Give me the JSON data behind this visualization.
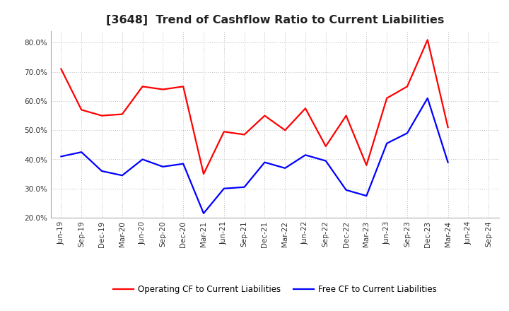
{
  "title": "[3648]  Trend of Cashflow Ratio to Current Liabilities",
  "x_labels": [
    "Jun-19",
    "Sep-19",
    "Dec-19",
    "Mar-20",
    "Jun-20",
    "Sep-20",
    "Dec-20",
    "Mar-21",
    "Jun-21",
    "Sep-21",
    "Dec-21",
    "Mar-22",
    "Jun-22",
    "Sep-22",
    "Dec-22",
    "Mar-23",
    "Jun-23",
    "Sep-23",
    "Dec-23",
    "Mar-24",
    "Jun-24",
    "Sep-24"
  ],
  "operating_cf": [
    71.0,
    57.0,
    55.0,
    55.5,
    65.0,
    64.0,
    65.0,
    35.0,
    49.5,
    48.5,
    55.0,
    50.0,
    57.5,
    44.5,
    55.0,
    38.0,
    61.0,
    65.0,
    81.0,
    51.0,
    null,
    null
  ],
  "free_cf": [
    41.0,
    42.5,
    36.0,
    34.5,
    40.0,
    37.5,
    38.5,
    21.5,
    30.0,
    30.5,
    39.0,
    37.0,
    41.5,
    39.5,
    29.5,
    27.5,
    45.5,
    49.0,
    61.0,
    39.0,
    null,
    null
  ],
  "ylim": [
    20.0,
    84.0
  ],
  "yticks": [
    20.0,
    30.0,
    40.0,
    50.0,
    60.0,
    70.0,
    80.0
  ],
  "operating_color": "#ff0000",
  "free_color": "#0000ff",
  "legend_operating": "Operating CF to Current Liabilities",
  "legend_free": "Free CF to Current Liabilities",
  "bg_color": "#ffffff",
  "grid_color": "#bbbbbb",
  "title_fontsize": 11.5,
  "axis_fontsize": 7.5,
  "legend_fontsize": 8.5
}
